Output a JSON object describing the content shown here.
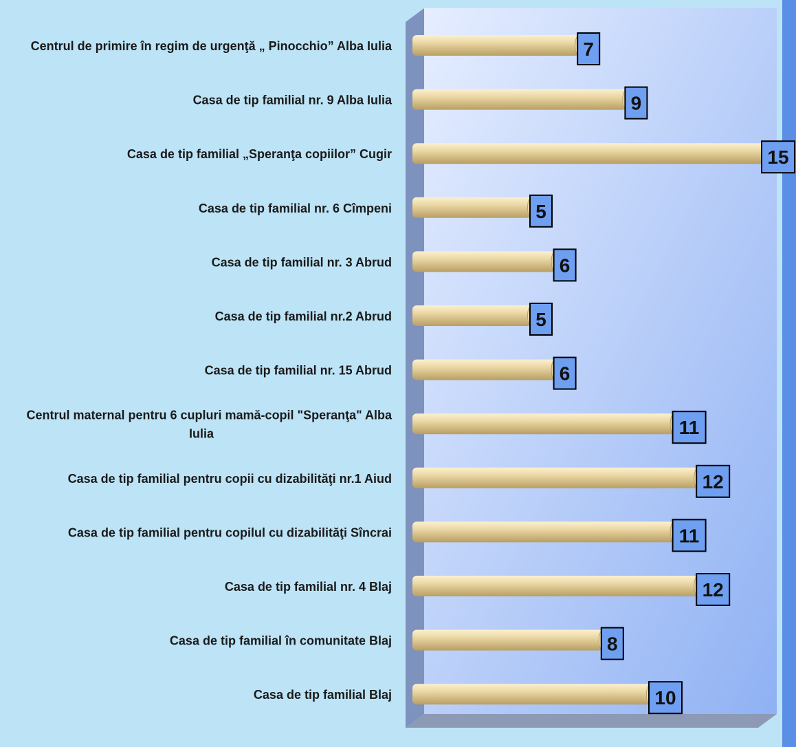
{
  "chart_data": {
    "type": "bar",
    "orientation": "horizontal",
    "categories": [
      [
        "Centrul de primire în regim de urgenţă „ Pinocchio” Alba Iulia"
      ],
      [
        "Casa de tip familial  nr. 9  Alba Iulia"
      ],
      [
        "Casa de tip familial „Speranţa copiilor” Cugir"
      ],
      [
        "Casa de tip familial nr. 6 Cîmpeni"
      ],
      [
        "Casa de tip familial nr. 3 Abrud"
      ],
      [
        "Casa de tip familial nr.2 Abrud"
      ],
      [
        "Casa de tip familial nr. 15 Abrud"
      ],
      [
        "Centrul maternal pentru 6 cupluri mamă-copil \"Speranţa\" Alba",
        "Iulia"
      ],
      [
        "Casa de tip familial pentru copii cu dizabilităţi nr.1 Aiud"
      ],
      [
        "Casa de tip familial pentru copilul cu dizabilităţi Sîncrai"
      ],
      [
        "Casa de tip familial nr. 4 Blaj"
      ],
      [
        "Casa de tip familial în comunitate Blaj"
      ],
      [
        "Casa de tip familial Blaj"
      ]
    ],
    "values": [
      7,
      9,
      15,
      5,
      6,
      5,
      6,
      11,
      12,
      11,
      12,
      8,
      10
    ],
    "xlim": [
      0,
      15
    ],
    "grid": false,
    "legend": "none",
    "colors": {
      "background": "#bde3f6",
      "bar_light": "#fbf0cf",
      "bar_mid": "#ecd9a6",
      "bar_dark": "#b89e63",
      "label_box": "#6f9ff0",
      "wall_light": "#e6eeff",
      "wall_dark": "#8fb1f3",
      "side_wall": "#7d92bd",
      "floor": "#8d9ab6",
      "right_strip": "#5b8fe6"
    }
  }
}
